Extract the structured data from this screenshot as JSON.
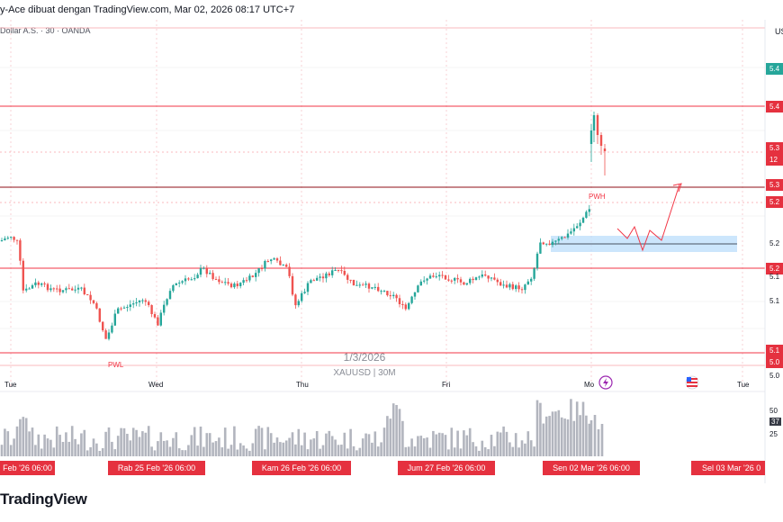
{
  "header": {
    "caption": "y-Ace dibuat dengan TradingView.com, Mar 02, 2026 08:17 UTC+7",
    "legend": "Dollar A.S. · 30 · OANDA",
    "currency": "US"
  },
  "watermark": {
    "date": "1/3/2026",
    "symbol": "XAUUSD | 30M"
  },
  "annotations": {
    "pwl": "PWL",
    "pwh": "PWH"
  },
  "day_axis": {
    "labels": [
      {
        "text": "Tue",
        "name": "tue"
      },
      {
        "text": "Wed",
        "name": "wed"
      },
      {
        "text": "Thu",
        "name": "thu"
      },
      {
        "text": "Fri",
        "name": "fri"
      },
      {
        "text": "Mo",
        "name": "mon"
      },
      {
        "text": "Tue",
        "name": "tue-next"
      }
    ]
  },
  "date_labels": [
    "Feb '26   06:00",
    "Rab 25 Feb '26   06:00",
    "Kam 26 Feb '26   06:00",
    "Jum 27 Feb '26   06:00",
    "Sen 02 Mar '26   06:00",
    "Sel 03 Mar '26   0"
  ],
  "price_axis": {
    "labels": [
      {
        "text": "5.4",
        "bg": "#26a69a",
        "color": "#ffffff"
      },
      {
        "text": "5.4",
        "bg": "#e5313f",
        "color": "#ffffff"
      },
      {
        "text": "5.3",
        "bg": "#e5313f",
        "color": "#ffffff"
      },
      {
        "text": "12",
        "bg": "#e5313f",
        "color": "#ffffff"
      },
      {
        "text": "5.3",
        "bg": "#e5313f",
        "color": "#ffffff"
      },
      {
        "text": "5.2",
        "bg": "#e5313f",
        "color": "#ffffff"
      },
      {
        "text": "5.2",
        "bg": "",
        "color": "#131722"
      },
      {
        "text": "5.2",
        "bg": "#e5313f",
        "color": "#ffffff"
      },
      {
        "text": "5.1",
        "bg": "",
        "color": "#131722"
      },
      {
        "text": "5.1",
        "bg": "",
        "color": "#131722"
      },
      {
        "text": "5.1",
        "bg": "#e5313f",
        "color": "#ffffff"
      },
      {
        "text": "5.0",
        "bg": "#e5313f",
        "color": "#ffffff"
      },
      {
        "text": "5.0",
        "bg": "",
        "color": "#131722"
      }
    ]
  },
  "volume_axis": {
    "labels": [
      "50",
      "37",
      "25"
    ]
  },
  "footer": {
    "logo": "TradingView",
    "logo_prefix": ""
  },
  "colors": {
    "up": "#26a69a",
    "down": "#ef5350",
    "level": "#f23645",
    "zone": "#bbdefb",
    "volume": "#b2b5be"
  }
}
